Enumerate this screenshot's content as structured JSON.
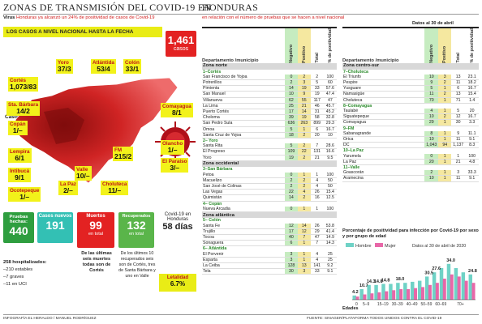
{
  "header": {
    "left_title": "ZONAS DE TRANSMISIÓN DEL COVID-19 EN",
    "right_title": "HONDURAS",
    "sub_left_bold": "Virus",
    "sub_left": "Honduras ya alcanzó un 24% de positividad de casos de Covid-19",
    "sub_right": "en relación con el número de pruebas que se hacen a nivel nacional"
  },
  "map": {
    "title": "LOS CASOS A NIVEL NACIONAL HASTA LA FECHA",
    "total": "1,461",
    "total_unit": "casos",
    "legend": "Casos / Muertos",
    "labels": [
      {
        "name": "Cortés",
        "value": "1,073/83"
      },
      {
        "name": "Sta. Bárbara",
        "value": "14/2"
      },
      {
        "name": "Yoro",
        "value": "37/3"
      },
      {
        "name": "Atlántida",
        "value": "53/4"
      },
      {
        "name": "Colón",
        "value": "33/1"
      },
      {
        "name": "Copán",
        "value": "1/–"
      },
      {
        "name": "Comayagua",
        "value": "8/1"
      },
      {
        "name": "Olancho",
        "value": "1/–"
      },
      {
        "name": "Lempira",
        "value": "6/1"
      },
      {
        "name": "FM",
        "value": "215/2"
      },
      {
        "name": "El Paraíso",
        "value": "3/–"
      },
      {
        "name": "Intibucá",
        "value": "9/1"
      },
      {
        "name": "Valle",
        "value": "10/–"
      },
      {
        "name": "Choluteca",
        "value": "11/–"
      },
      {
        "name": "Ocotepeque",
        "value": "1/–"
      },
      {
        "name": "La Paz",
        "value": "2/–"
      }
    ]
  },
  "stats": {
    "pruebas_label": "Pruebas hechas:",
    "pruebas": "440",
    "nuevos_label": "Casos nuevos",
    "nuevos": "191",
    "muertos_label": "Muertos",
    "muertos": "99",
    "muertos_sub": "en total",
    "recuperados_label": "Recuperados",
    "recuperados": "132",
    "recuperados_sub": "en total",
    "covid_text": "Covid-19 en Honduras",
    "dias": "58 días",
    "hosp": "258 hospitalizados:",
    "hosp_1": "–210 estables",
    "hosp_2": "–7 graves",
    "hosp_3": "–11 en UCI",
    "note_muertos": "De las últimas seis muertes todas son de Cortés",
    "note_recuperados": "De los últimos 10 recuperados seis son de Cortés, tres de Santa Bárbara y uno en Valle",
    "letalidad_label": "Letalidad",
    "letalidad": "6.7%"
  },
  "table_headers": {
    "dept": "Departamento /municipio",
    "neg": "Negativo",
    "pos": "Positivo",
    "total": "Total",
    "pct": "% de positividad",
    "date": "Datos al 30 de abril"
  },
  "left_table": [
    {
      "zone": "Zona norte"
    },
    {
      "dept": "1–Cortés"
    },
    {
      "m": "San Francisco de Yojoa",
      "a": "0",
      "b": "2",
      "c": "2",
      "d": "100"
    },
    {
      "m": "Potrerillos",
      "a": "2",
      "b": "3",
      "c": "5",
      "d": "60"
    },
    {
      "m": "Pimienta",
      "a": "14",
      "b": "19",
      "c": "33",
      "d": "57.6"
    },
    {
      "m": "San Manuel",
      "a": "10",
      "b": "9",
      "c": "19",
      "d": "47.4"
    },
    {
      "m": "Villanueva",
      "a": "62",
      "b": "55",
      "c": "117",
      "d": "47"
    },
    {
      "m": "La Lima",
      "a": "25",
      "b": "21",
      "c": "46",
      "d": "45.7"
    },
    {
      "m": "Puerto Cortés",
      "a": "17",
      "b": "14",
      "c": "31",
      "d": "45.2"
    },
    {
      "m": "Choloma",
      "a": "39",
      "b": "19",
      "c": "58",
      "d": "32.8"
    },
    {
      "m": "San Pedro Sula",
      "a": "636",
      "b": "263",
      "c": "899",
      "d": "29.3"
    },
    {
      "m": "Omoa",
      "a": "5",
      "b": "1",
      "c": "6",
      "d": "16.7"
    },
    {
      "m": "Santa Cruz de Yojoa",
      "a": "18",
      "b": "2",
      "c": "20",
      "d": "10"
    },
    {
      "dept": "2– Yoro"
    },
    {
      "m": "Santa Rita",
      "a": "5",
      "b": "2",
      "c": "7",
      "d": "28.6"
    },
    {
      "m": "El Progreso",
      "a": "109",
      "b": "22",
      "c": "131",
      "d": "16.6"
    },
    {
      "m": "Yoro",
      "a": "19",
      "b": "2",
      "c": "21",
      "d": "9.5"
    },
    {
      "zone": "Zona occidental"
    },
    {
      "dept": "3–San Bárbara"
    },
    {
      "m": "Petoa",
      "a": "0",
      "b": "1",
      "c": "1",
      "d": "100"
    },
    {
      "m": "Macuelizo",
      "a": "2",
      "b": "2",
      "c": "4",
      "d": "50"
    },
    {
      "m": "San José de Colinas",
      "a": "2",
      "b": "2",
      "c": "4",
      "d": "50"
    },
    {
      "m": "Las Vegas",
      "a": "22",
      "b": "4",
      "c": "26",
      "d": "15.4"
    },
    {
      "m": "Quimistán",
      "a": "14",
      "b": "2",
      "c": "16",
      "d": "12.5"
    },
    {
      "dept": "4– Copán"
    },
    {
      "m": "Nueva Arcadia",
      "a": "0",
      "b": "1",
      "c": "1",
      "d": "100"
    },
    {
      "zone": "Zona atlántica"
    },
    {
      "dept": "5– Colón"
    },
    {
      "m": "Santa Fe",
      "a": "12",
      "b": "14",
      "c": "26",
      "d": "53.8"
    },
    {
      "m": "Trujillo",
      "a": "17",
      "b": "12",
      "c": "29",
      "d": "41.4"
    },
    {
      "m": "Tocoa",
      "a": "40",
      "b": "7",
      "c": "47",
      "d": "14.9"
    },
    {
      "m": "Sonaguera",
      "a": "6",
      "b": "1",
      "c": "7",
      "d": "14.3"
    },
    {
      "dept": "6– Atlántida"
    },
    {
      "m": "El Porvenir",
      "a": "3",
      "b": "1",
      "c": "4",
      "d": "25"
    },
    {
      "m": "Esparta",
      "a": "3",
      "b": "1",
      "c": "4",
      "d": "25"
    },
    {
      "m": "La Ceiba",
      "a": "128",
      "b": "13",
      "c": "141",
      "d": "9.2"
    },
    {
      "m": "Tela",
      "a": "30",
      "b": "3",
      "c": "33",
      "d": "9.1"
    }
  ],
  "right_table": [
    {
      "zone": "Zona centro-sur"
    },
    {
      "dept": "7–Choluteca"
    },
    {
      "m": "El Triunfo",
      "a": "10",
      "b": "3",
      "c": "13",
      "d": "23.1"
    },
    {
      "m": "Pespire",
      "a": "9",
      "b": "2",
      "c": "11",
      "d": "18.2"
    },
    {
      "m": "Yusguare",
      "a": "5",
      "b": "1",
      "c": "6",
      "d": "16.7"
    },
    {
      "m": "Namasigüe",
      "a": "11",
      "b": "2",
      "c": "13",
      "d": "15.4"
    },
    {
      "m": "Choluteca",
      "a": "70",
      "b": "1",
      "c": "71",
      "d": "1.4"
    },
    {
      "dept": "8–Comayagua"
    },
    {
      "m": "Taulabé",
      "a": "4",
      "b": "1",
      "c": "5",
      "d": "20"
    },
    {
      "m": "Siguatepeque",
      "a": "10",
      "b": "2",
      "c": "12",
      "d": "16.7"
    },
    {
      "m": "Comayagua",
      "a": "29",
      "b": "1",
      "c": "30",
      "d": "3.3"
    },
    {
      "dept": "9–FM"
    },
    {
      "m": "Sabanagrande",
      "a": "8",
      "b": "1",
      "c": "9",
      "d": "11.1"
    },
    {
      "m": "Orica",
      "a": "10",
      "b": "1",
      "c": "11",
      "d": "9.1"
    },
    {
      "m": "DC",
      "a": "1,043",
      "b": "94",
      "c": "1,137",
      "d": "8.3"
    },
    {
      "dept": "10–La Paz"
    },
    {
      "m": "Yarumela",
      "a": "0",
      "b": "1",
      "c": "1",
      "d": "100"
    },
    {
      "m": "La Paz",
      "a": "20",
      "b": "1",
      "c": "21",
      "d": "4.8"
    },
    {
      "dept": "11–Valle"
    },
    {
      "m": "Goascorán",
      "a": "2",
      "b": "1",
      "c": "3",
      "d": "33.3"
    },
    {
      "m": "Aramecina",
      "a": "10",
      "b": "1",
      "c": "11",
      "d": "9.1"
    }
  ],
  "chart_data": {
    "type": "bar",
    "title": "Porcentaje de positividad para infección por Covid-19 por sexo y por grupo de edad",
    "date_note": "Datos al 30 de abril de 2020",
    "xlabel": "Edades",
    "categories": [
      "0-4",
      "5-9",
      "10-14",
      "15-19",
      "20-24",
      "25-29",
      "30-34",
      "35-39",
      "40-44",
      "45-49",
      "50-54",
      "55-59",
      "60-64",
      "65-69",
      "70-74",
      "75-79",
      "80+"
    ],
    "tick_labels": [
      "0",
      "5–9",
      "15–19",
      "30–39",
      "40–49",
      "50–59",
      "60–69",
      "70+"
    ],
    "series": [
      {
        "name": "Hombre",
        "color": "#6fd2c6",
        "values": [
          4,
          10,
          14,
          14,
          15,
          15,
          16,
          16,
          17,
          18,
          22,
          26,
          30,
          34,
          30,
          26,
          24
        ]
      },
      {
        "name": "Mujer",
        "color": "#e867a8",
        "values": [
          3,
          5,
          6,
          7,
          8,
          9,
          10,
          10,
          11,
          12,
          14,
          16,
          20,
          24,
          22,
          18,
          16
        ]
      }
    ],
    "data_labels": [
      "4.2",
      "10.7",
      "14.3",
      "14.8",
      "14.8",
      "18.0",
      "30.5",
      "27.6",
      "34.0",
      "24.8"
    ],
    "ylim": [
      0,
      40
    ]
  },
  "footer": {
    "left": "INFOGRAFÍA EL HERALDO / MANUEL RODRÍGUEZ",
    "right": "FUENTE: SINAGER/PLATAFORMA TODOS UNIDOS CONTRA EL COVID-19"
  }
}
